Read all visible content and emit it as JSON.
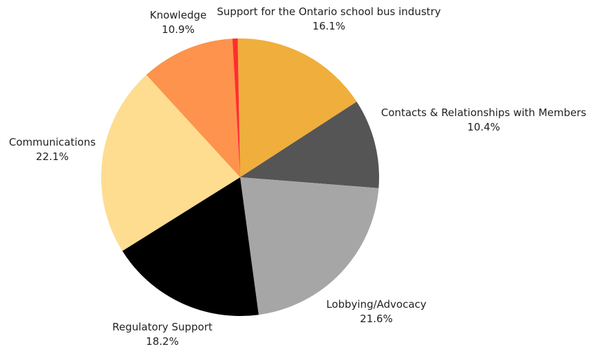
{
  "chart_data": {
    "type": "pie",
    "start_angle_deg": -1,
    "direction": "clockwise",
    "slices": [
      {
        "label": "Support for the Ontario school bus industry",
        "value": 16.1,
        "display": "16.1%",
        "color": "#F0AE3C"
      },
      {
        "label": "Contacts & Relationships with Members",
        "value": 10.4,
        "display": "10.4%",
        "color": "#555555"
      },
      {
        "label": "Lobbying/Advocacy",
        "value": 21.6,
        "display": "21.6%",
        "color": "#A6A6A6"
      },
      {
        "label": "Regulatory Support",
        "value": 18.2,
        "display": "18.2%",
        "color": "#000000"
      },
      {
        "label": "Communications",
        "value": 22.1,
        "display": "22.1%",
        "color": "#FEDD91"
      },
      {
        "label": "Knowledge",
        "value": 10.9,
        "display": "10.9%",
        "color": "#FD934C"
      },
      {
        "label": "",
        "value": 0.6,
        "display": "",
        "color": "#FF2E2E"
      }
    ]
  }
}
